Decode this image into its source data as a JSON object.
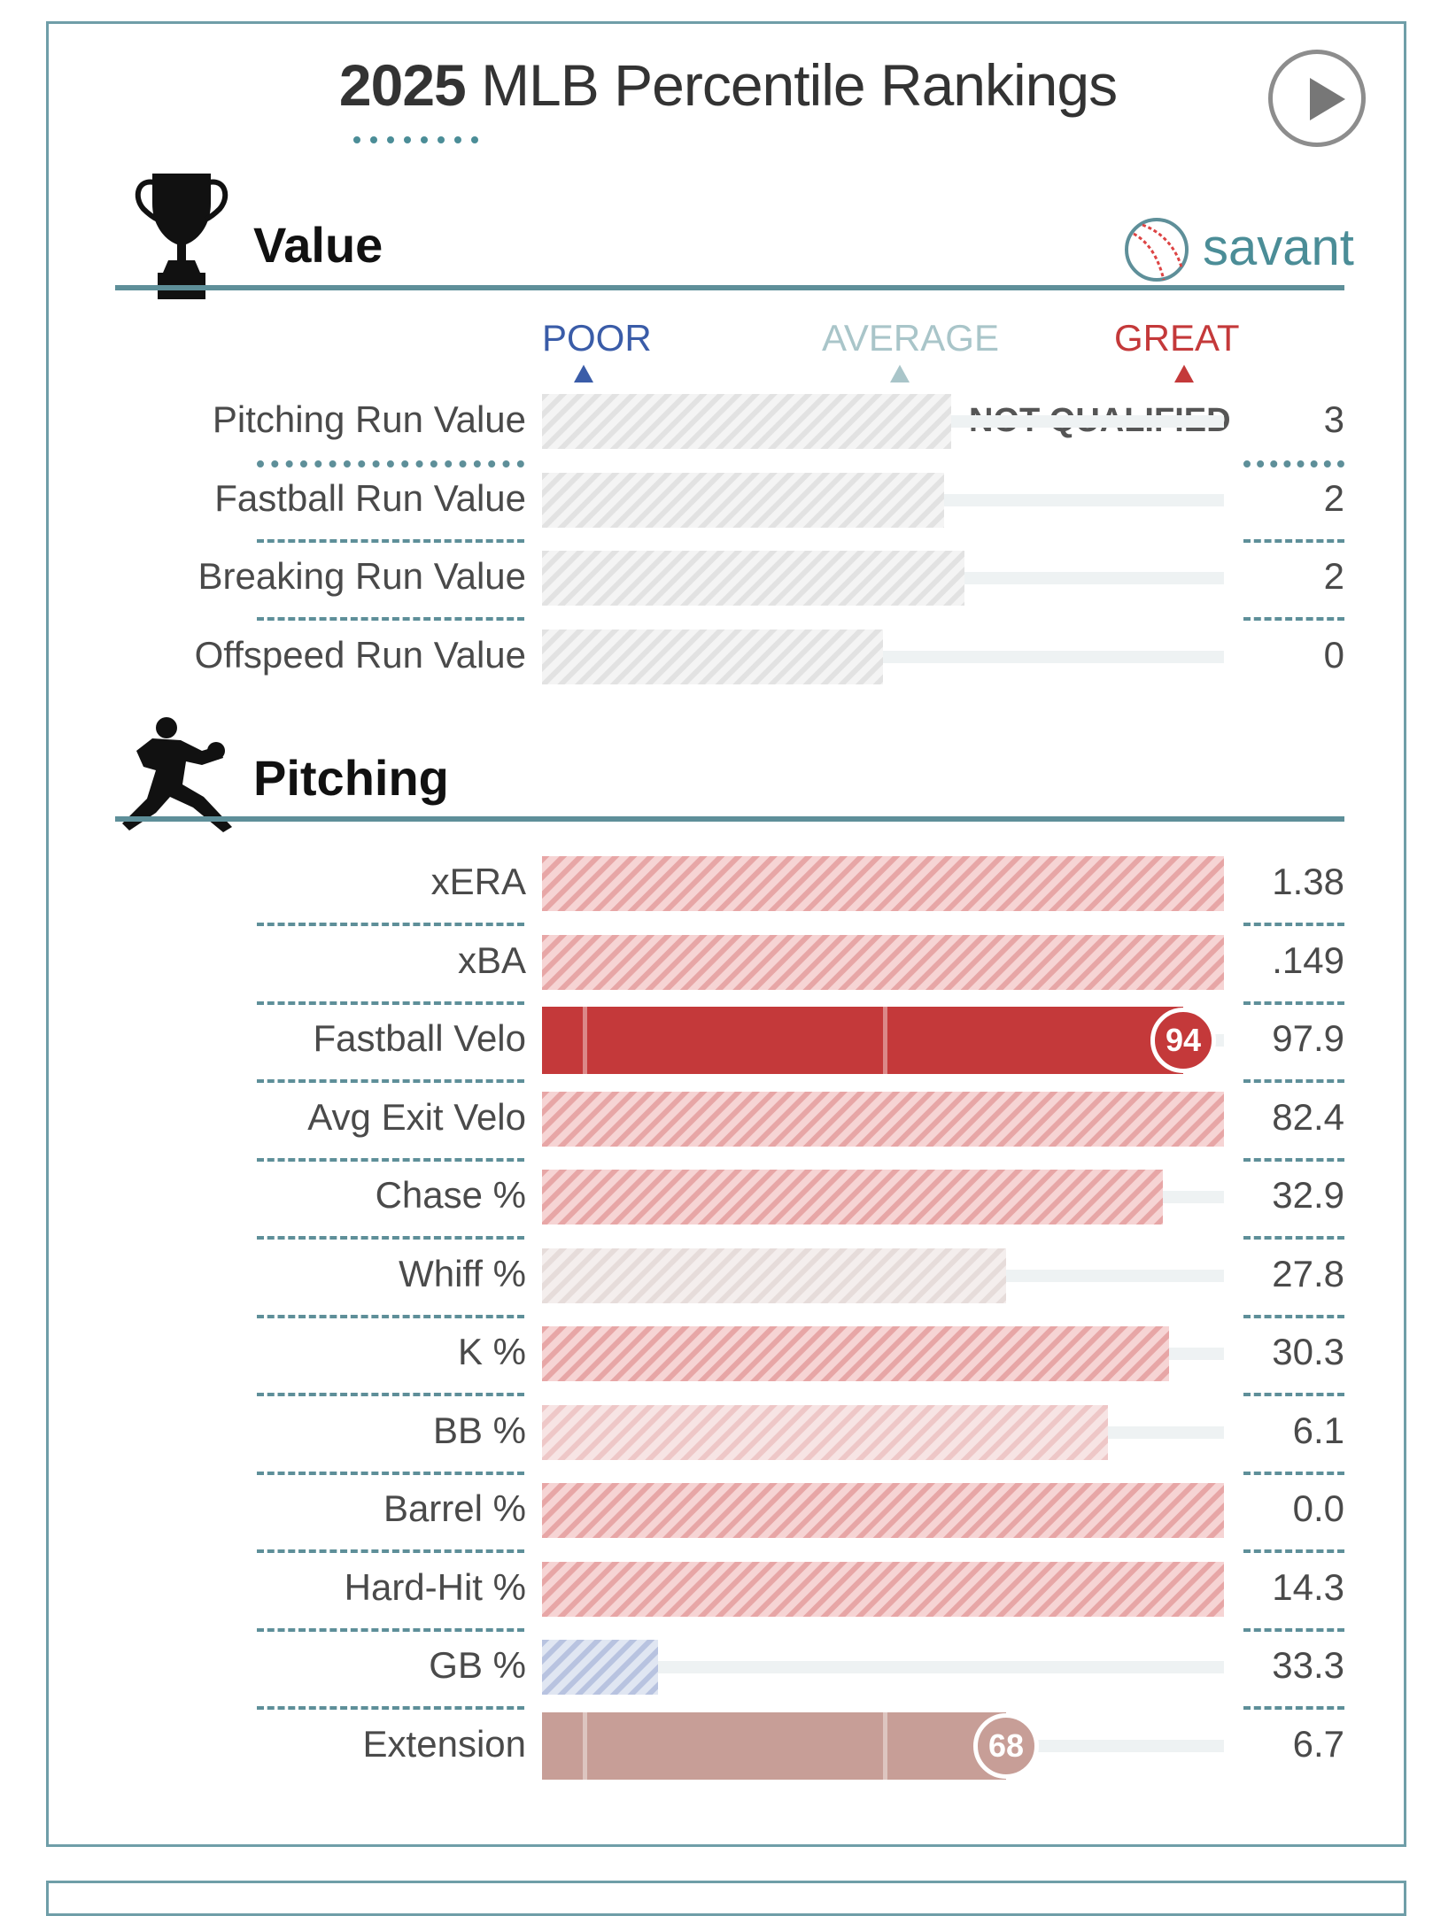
{
  "header": {
    "title_year": "2025",
    "title_rest": " MLB Percentile Rankings",
    "play_button": "play-icon",
    "brand": "savant"
  },
  "colors": {
    "great": "#c4393a",
    "poor": "#3a5ca8",
    "average": "#a9c5c9",
    "teal": "#5e8f99",
    "extension": "#c79e97"
  },
  "scale": {
    "poor": "POOR",
    "average": "AVERAGE",
    "great": "GREAT"
  },
  "sections": {
    "value": {
      "title": "Value",
      "icon": "trophy-icon"
    },
    "pitching": {
      "title": "Pitching",
      "icon": "pitcher-icon"
    }
  },
  "chart_data": [
    {
      "type": "bar",
      "section": "Value",
      "categories": [
        "Pitching Run Value",
        "Fastball Run Value",
        "Breaking Run Value",
        "Offspeed Run Value"
      ],
      "percentiles": [
        60,
        59,
        62,
        50
      ],
      "values": [
        "3",
        "2",
        "2",
        "0"
      ],
      "qualified": false,
      "note": "NOT QUALIFIED",
      "xlim": [
        0,
        100
      ]
    },
    {
      "type": "bar",
      "section": "Pitching",
      "categories": [
        "xERA",
        "xBA",
        "Fastball Velo",
        "Avg Exit Velo",
        "Chase %",
        "Whiff %",
        "K %",
        "BB %",
        "Barrel %",
        "Hard-Hit %",
        "GB %",
        "Extension"
      ],
      "percentiles": [
        100,
        100,
        94,
        100,
        91,
        68,
        92,
        83,
        100,
        100,
        17,
        68
      ],
      "values": [
        "1.38",
        ".149",
        "97.9",
        "82.4",
        "32.9",
        "27.8",
        "30.3",
        "6.1",
        "0.0",
        "14.3",
        "33.3",
        "6.7"
      ],
      "qualified_flags": [
        false,
        false,
        true,
        false,
        false,
        false,
        false,
        false,
        false,
        false,
        false,
        true
      ],
      "xlim": [
        0,
        100
      ]
    }
  ]
}
